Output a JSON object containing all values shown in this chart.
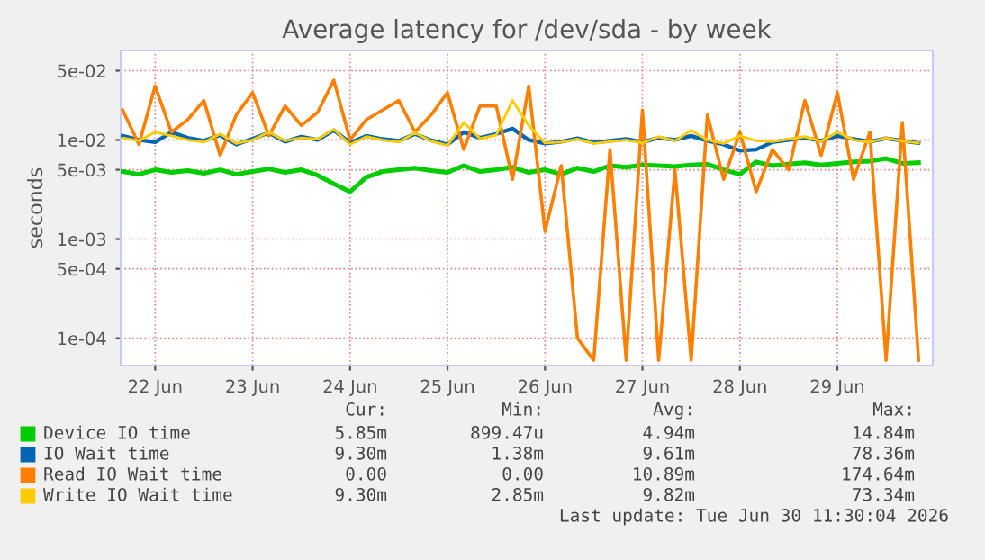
{
  "chart_data": {
    "type": "line",
    "title": "Average latency for /dev/sda - by week",
    "ylabel": "seconds",
    "x": [
      "2026-06-22T04:00",
      "2026-06-22T08:00",
      "2026-06-22T12:00",
      "2026-06-22T16:00",
      "2026-06-22T20:00",
      "2026-06-23T00:00",
      "2026-06-23T04:00",
      "2026-06-23T08:00",
      "2026-06-23T12:00",
      "2026-06-23T16:00",
      "2026-06-23T20:00",
      "2026-06-24T00:00",
      "2026-06-24T04:00",
      "2026-06-24T08:00",
      "2026-06-24T12:00",
      "2026-06-24T16:00",
      "2026-06-24T20:00",
      "2026-06-25T00:00",
      "2026-06-25T04:00",
      "2026-06-25T08:00",
      "2026-06-25T12:00",
      "2026-06-25T16:00",
      "2026-06-25T20:00",
      "2026-06-26T00:00",
      "2026-06-26T04:00",
      "2026-06-26T08:00",
      "2026-06-26T12:00",
      "2026-06-26T16:00",
      "2026-06-26T20:00",
      "2026-06-27T00:00",
      "2026-06-27T04:00",
      "2026-06-27T08:00",
      "2026-06-27T12:00",
      "2026-06-27T16:00",
      "2026-06-27T20:00",
      "2026-06-28T00:00",
      "2026-06-28T04:00",
      "2026-06-28T08:00",
      "2026-06-28T12:00",
      "2026-06-28T16:00",
      "2026-06-28T20:00",
      "2026-06-29T00:00",
      "2026-06-29T04:00",
      "2026-06-29T08:00",
      "2026-06-29T12:00",
      "2026-06-29T16:00",
      "2026-06-29T20:00",
      "2026-06-30T00:00",
      "2026-06-30T04:00",
      "2026-06-30T08:00"
    ],
    "series": [
      {
        "name": "Device IO time",
        "color": "#00cc00",
        "values": [
          0.0048,
          0.0045,
          0.005,
          0.0047,
          0.0049,
          0.0046,
          0.005,
          0.0045,
          0.0048,
          0.0051,
          0.0047,
          0.005,
          0.0044,
          0.0036,
          0.003,
          0.0042,
          0.0048,
          0.005,
          0.0052,
          0.0049,
          0.0047,
          0.0055,
          0.0048,
          0.005,
          0.0053,
          0.0047,
          0.005,
          0.0045,
          0.0052,
          0.0048,
          0.0055,
          0.0053,
          0.0056,
          0.0055,
          0.0054,
          0.0056,
          0.0057,
          0.005,
          0.0045,
          0.006,
          0.0055,
          0.0057,
          0.0059,
          0.0056,
          0.0058,
          0.006,
          0.0061,
          0.0065,
          0.0058,
          0.0059
        ]
      },
      {
        "name": "IO Wait time",
        "color": "#0066b3",
        "values": [
          0.011,
          0.01,
          0.0095,
          0.012,
          0.0105,
          0.0098,
          0.0112,
          0.009,
          0.0103,
          0.0118,
          0.0096,
          0.0108,
          0.01,
          0.0125,
          0.0094,
          0.011,
          0.0102,
          0.0098,
          0.0115,
          0.0099,
          0.009,
          0.012,
          0.0105,
          0.0115,
          0.013,
          0.01,
          0.0092,
          0.0096,
          0.0104,
          0.0094,
          0.0098,
          0.0102,
          0.0095,
          0.0105,
          0.01,
          0.011,
          0.0098,
          0.009,
          0.0078,
          0.008,
          0.0095,
          0.01,
          0.0105,
          0.0098,
          0.011,
          0.0102,
          0.0096,
          0.0104,
          0.0098,
          0.0093
        ]
      },
      {
        "name": "Read IO Wait time",
        "color": "#ff8000",
        "values": [
          0.02,
          0.009,
          0.035,
          0.012,
          0.016,
          0.025,
          0.007,
          0.018,
          0.03,
          0.011,
          0.022,
          0.014,
          0.019,
          0.04,
          0.01,
          0.016,
          0.02,
          0.025,
          0.012,
          0.018,
          0.03,
          0.008,
          0.022,
          0.022,
          0.004,
          0.035,
          0.0012,
          0.0055,
          0.0001,
          6e-05,
          0.008,
          6e-05,
          0.02,
          6e-05,
          0.005,
          6e-05,
          0.018,
          0.004,
          0.012,
          0.003,
          0.008,
          0.005,
          0.025,
          0.007,
          0.03,
          0.004,
          0.012,
          6e-05,
          0.015,
          6e-05
        ]
      },
      {
        "name": "Write IO Wait time",
        "color": "#ffcc00",
        "values": [
          0.0105,
          0.0098,
          0.012,
          0.011,
          0.01,
          0.0095,
          0.0115,
          0.0092,
          0.01,
          0.012,
          0.0098,
          0.0105,
          0.0102,
          0.0128,
          0.009,
          0.0108,
          0.01,
          0.0095,
          0.0118,
          0.0097,
          0.0088,
          0.015,
          0.0103,
          0.0112,
          0.025,
          0.014,
          0.0093,
          0.0095,
          0.0102,
          0.0092,
          0.0096,
          0.01,
          0.0093,
          0.0108,
          0.0098,
          0.0125,
          0.01,
          0.0092,
          0.011,
          0.0098,
          0.0096,
          0.0102,
          0.0108,
          0.0097,
          0.012,
          0.01,
          0.0095,
          0.0105,
          0.0097,
          0.0093
        ]
      }
    ],
    "log": "y",
    "ylim": [
      5.3e-05,
      0.08
    ],
    "yticks": [
      {
        "value": 0.05,
        "label": "5e-02"
      },
      {
        "value": 0.01,
        "label": "1e-02"
      },
      {
        "value": 0.005,
        "label": "5e-03"
      },
      {
        "value": 0.001,
        "label": "1e-03"
      },
      {
        "value": 0.0005,
        "label": "5e-04"
      },
      {
        "value": 0.0001,
        "label": "1e-04"
      }
    ],
    "xlim": [
      "2026-06-22T03:30",
      "2026-06-30T11:30"
    ],
    "xticks": [
      {
        "value": "2026-06-22T12:00",
        "label": "22 Jun"
      },
      {
        "value": "2026-06-23T12:00",
        "label": "23 Jun"
      },
      {
        "value": "2026-06-24T12:00",
        "label": "24 Jun"
      },
      {
        "value": "2026-06-25T12:00",
        "label": "25 Jun"
      },
      {
        "value": "2026-06-26T12:00",
        "label": "26 Jun"
      },
      {
        "value": "2026-06-27T12:00",
        "label": "27 Jun"
      },
      {
        "value": "2026-06-28T12:00",
        "label": "28 Jun"
      },
      {
        "value": "2026-06-29T12:00",
        "label": "29 Jun"
      }
    ],
    "grid": true,
    "legend": "bottom",
    "marker": "none",
    "line_style": "solid",
    "annotations": [
      "Cur:",
      "Min:",
      "Avg:",
      "Max:",
      "5.85m",
      "899.47u",
      "4.94m",
      "14.84m",
      "9.30m",
      "1.38m",
      "9.61m",
      "78.36m",
      "0.00",
      "0.00",
      "10.89m",
      "174.64m",
      "9.30m",
      "2.85m",
      "9.82m",
      "73.34m",
      "Last update: Tue Jun 30 11:30:04 2026"
    ]
  }
}
